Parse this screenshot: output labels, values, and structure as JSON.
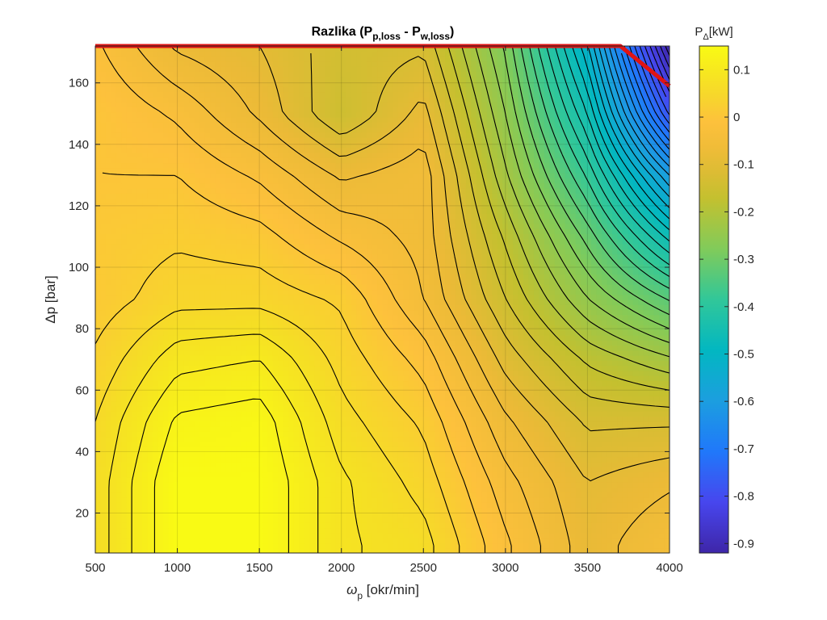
{
  "chart_data": {
    "type": "heatmap",
    "title_main": "Razlika (P",
    "title_sub1": "p,loss",
    "title_mid": " - P",
    "title_sub2": "w,loss",
    "title_end": ")",
    "xlabel_main": "ω",
    "xlabel_sub": "p",
    "xlabel_rest": " [okr/min]",
    "ylabel": "Δp  [bar]",
    "colorbar_label_main": "P",
    "colorbar_label_sub": "Δ",
    "colorbar_label_rest": "[kW]",
    "xlim": [
      500,
      4000
    ],
    "ylim": [
      7,
      172
    ],
    "clim": [
      -0.92,
      0.15
    ],
    "x_ticks": [
      "500",
      "1000",
      "1500",
      "2000",
      "2500",
      "3000",
      "3500",
      "4000"
    ],
    "y_ticks": [
      "20",
      "40",
      "60",
      "80",
      "100",
      "120",
      "140",
      "160"
    ],
    "colorbar_ticks": [
      "0.1",
      "0",
      "-0.1",
      "-0.2",
      "-0.3",
      "-0.4",
      "-0.5",
      "-0.6",
      "-0.7",
      "-0.8",
      "-0.9"
    ],
    "colormap": "parula",
    "contour_color": "#000000",
    "grid": true,
    "x": [
      500,
      1000,
      1500,
      2000,
      2500,
      3000,
      3500,
      4000
    ],
    "y": [
      10,
      30,
      50,
      70,
      90,
      110,
      130,
      150,
      172
    ],
    "z": [
      [
        0.06,
        0.15,
        0.15,
        0.08,
        0.06,
        -0.02,
        -0.09,
        -0.05
      ],
      [
        0.06,
        0.15,
        0.15,
        0.08,
        0.04,
        -0.04,
        -0.1,
        -0.08
      ],
      [
        0.05,
        0.13,
        0.14,
        0.06,
        0.02,
        -0.07,
        -0.13,
        -0.13
      ],
      [
        0.03,
        0.09,
        0.1,
        0.04,
        -0.01,
        -0.11,
        -0.18,
        -0.22
      ],
      [
        0.01,
        0.04,
        0.04,
        0.02,
        -0.05,
        -0.15,
        -0.25,
        -0.33
      ],
      [
        0.01,
        0.02,
        0.01,
        -0.03,
        -0.06,
        -0.18,
        -0.31,
        -0.46
      ],
      [
        0.0,
        0.0,
        -0.03,
        -0.08,
        -0.06,
        -0.22,
        -0.38,
        -0.6
      ],
      [
        0.0,
        -0.03,
        -0.08,
        -0.15,
        -0.09,
        -0.25,
        -0.45,
        -0.78
      ],
      [
        -0.02,
        -0.08,
        -0.1,
        -0.14,
        -0.13,
        -0.28,
        -0.52,
        -0.92
      ]
    ],
    "limit_line": {
      "color": "#e11414",
      "x": [
        500,
        3700,
        4000
      ],
      "y": [
        172,
        172,
        159
      ]
    }
  }
}
